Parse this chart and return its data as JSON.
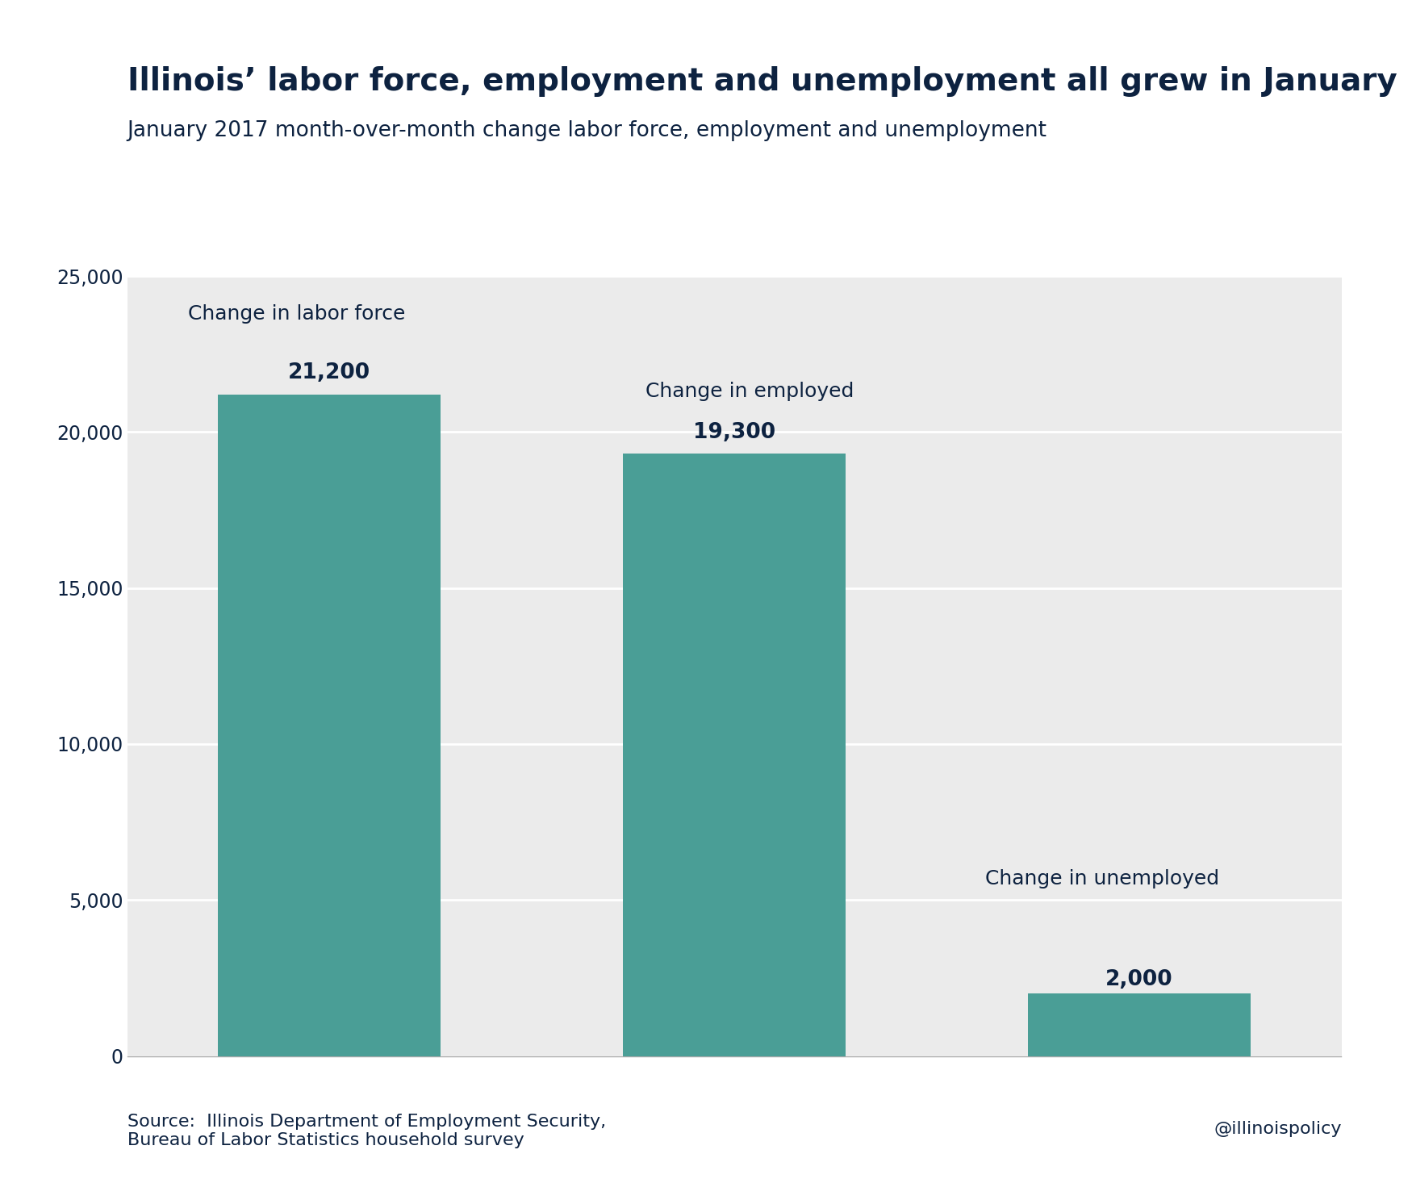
{
  "title": "Illinois’ labor force, employment and unemployment all grew in January",
  "subtitle": "January 2017 month-over-month change labor force, employment and unemployment",
  "categories": [
    "Labor Force",
    "Employed",
    "Unemployed"
  ],
  "values": [
    21200,
    19300,
    2000
  ],
  "bar_labels": [
    "21,200",
    "19,300",
    "2,000"
  ],
  "bar_annotations": [
    "Change in labor force",
    "Change in employed",
    "Change in unemployed"
  ],
  "bar_color": "#4a9e96",
  "text_color": "#0d2240",
  "bg_color": "#ffffff",
  "plot_bg_color": "#ebebeb",
  "ylim": [
    0,
    25000
  ],
  "yticks": [
    0,
    5000,
    10000,
    15000,
    20000,
    25000
  ],
  "source_text": "Source:  Illinois Department of Employment Security,\nBureau of Labor Statistics household survey",
  "handle_text": "@illinoispolicy",
  "title_fontsize": 28,
  "subtitle_fontsize": 19,
  "annotation_fontsize": 18,
  "value_fontsize": 19,
  "tick_fontsize": 17,
  "source_fontsize": 16
}
